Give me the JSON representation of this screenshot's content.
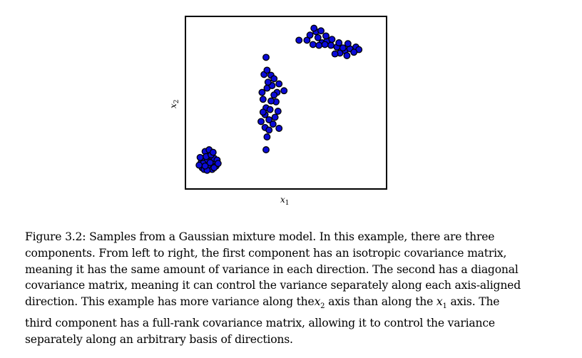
{
  "chart_data": {
    "type": "scatter",
    "xlabel": "x1",
    "ylabel": "x2",
    "xlabel_main": "x",
    "xlabel_sub": "1",
    "ylabel_main": "x",
    "ylabel_sub": "2",
    "grid": false,
    "xlim": [
      0,
      100
    ],
    "ylim": [
      0,
      100
    ],
    "marker_fill": "#0a0ad8",
    "marker_edge": "#000000",
    "series": [
      {
        "points": [
          [
            7.5,
            15.0
          ],
          [
            9.0,
            17.5
          ],
          [
            11.0,
            19.0
          ],
          [
            12.5,
            17.0
          ],
          [
            10.0,
            14.0
          ],
          [
            8.0,
            12.0
          ],
          [
            11.5,
            12.5
          ],
          [
            13.5,
            14.5
          ],
          [
            14.0,
            17.5
          ],
          [
            12.0,
            21.0
          ],
          [
            9.5,
            21.5
          ],
          [
            7.0,
            18.0
          ],
          [
            10.5,
            16.0
          ],
          [
            13.0,
            11.0
          ],
          [
            15.0,
            13.0
          ],
          [
            9.0,
            11.0
          ],
          [
            11.5,
            22.5
          ],
          [
            15.5,
            16.5
          ],
          [
            8.5,
            14.5
          ],
          [
            12.0,
            15.0
          ],
          [
            10.0,
            18.5
          ],
          [
            14.0,
            12.0
          ],
          [
            16.0,
            14.5
          ],
          [
            6.5,
            13.5
          ],
          [
            12.5,
            19.5
          ],
          [
            10.5,
            10.5
          ],
          [
            13.5,
            21.0
          ],
          [
            9.5,
            13.0
          ]
        ]
      },
      {
        "points": [
          [
            40.0,
            76.5
          ],
          [
            39.0,
            66.5
          ],
          [
            40.5,
            69.0
          ],
          [
            42.5,
            66.0
          ],
          [
            44.0,
            64.0
          ],
          [
            46.5,
            61.0
          ],
          [
            45.5,
            56.0
          ],
          [
            49.0,
            57.0
          ],
          [
            40.5,
            58.5
          ],
          [
            38.5,
            52.0
          ],
          [
            40.0,
            47.0
          ],
          [
            42.0,
            46.0
          ],
          [
            45.0,
            50.5
          ],
          [
            44.0,
            54.5
          ],
          [
            39.5,
            43.0
          ],
          [
            41.5,
            40.0
          ],
          [
            37.5,
            39.0
          ],
          [
            44.5,
            41.5
          ],
          [
            39.5,
            35.5
          ],
          [
            41.5,
            34.0
          ],
          [
            46.5,
            35.0
          ],
          [
            40.5,
            30.0
          ],
          [
            40.0,
            22.5
          ],
          [
            43.0,
            60.0
          ],
          [
            41.0,
            62.0
          ],
          [
            38.0,
            56.0
          ],
          [
            42.5,
            51.0
          ],
          [
            46.0,
            45.0
          ],
          [
            38.5,
            44.5
          ],
          [
            43.5,
            37.5
          ]
        ]
      },
      {
        "points": [
          [
            56.5,
            86.5
          ],
          [
            60.5,
            86.5
          ],
          [
            62.0,
            89.5
          ],
          [
            65.0,
            91.5
          ],
          [
            66.0,
            88.0
          ],
          [
            68.0,
            85.0
          ],
          [
            70.5,
            86.0
          ],
          [
            72.5,
            83.5
          ],
          [
            75.5,
            82.5
          ],
          [
            77.0,
            79.0
          ],
          [
            79.5,
            80.5
          ],
          [
            82.0,
            81.5
          ],
          [
            85.0,
            82.5
          ],
          [
            86.5,
            81.0
          ],
          [
            80.5,
            77.5
          ],
          [
            74.5,
            78.5
          ],
          [
            69.5,
            84.0
          ],
          [
            66.5,
            83.5
          ],
          [
            70.0,
            89.0
          ],
          [
            63.5,
            84.0
          ],
          [
            73.0,
            87.0
          ],
          [
            76.5,
            85.0
          ],
          [
            78.5,
            82.0
          ],
          [
            81.0,
            84.5
          ],
          [
            84.0,
            79.5
          ],
          [
            64.0,
            93.5
          ],
          [
            67.5,
            92.0
          ]
        ]
      }
    ]
  },
  "caption": {
    "lines": [
      "Figure 3.2: Samples from a Gaussian mixture model. In this example, there are three",
      "components. From left to right, the first component has an isotropic covariance matrix,",
      "meaning it has the same amount of variance in each direction. The second has a diagonal",
      "covariance matrix, meaning it can control the variance separately along each axis-aligned",
      "direction. This example has more variance along the x2 axis than along the x1 axis. The",
      "third component has a full-rank covariance matrix, allowing it to control the variance",
      "separately along an arbitrary basis of directions."
    ],
    "line5_a": "direction. This example has more variance along the",
    "line5_var1": "x",
    "line5_sub1": "2",
    "line5_b": " axis than along the ",
    "line5_var2": "x",
    "line5_sub2": "1",
    "line5_c": " axis. The"
  }
}
